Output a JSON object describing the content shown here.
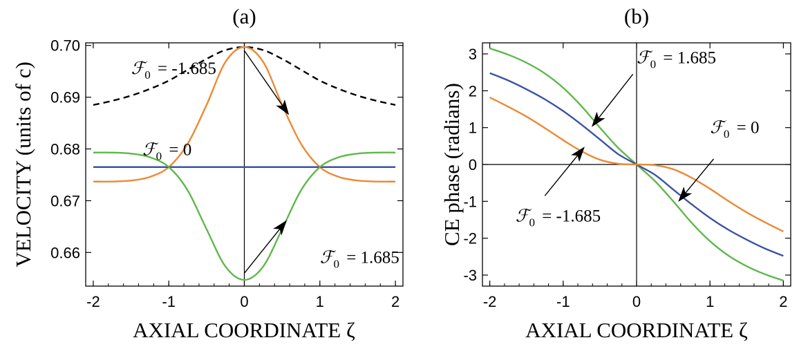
{
  "colors": {
    "orange": "#EE8833",
    "green": "#5DB84A",
    "blue": "#3A53A4",
    "dashed": "#000000",
    "axis": "#000000"
  },
  "chart_data": [
    {
      "type": "line",
      "panel_label": "(a)",
      "xlabel": "AXIAL COORDINATE ζ",
      "ylabel": "VELOCITY (units of c)",
      "xlim": [
        -2.1,
        2.1
      ],
      "ylim": [
        0.6535,
        0.7005
      ],
      "xticks": [
        -2,
        -1,
        0,
        1,
        2
      ],
      "xtick_labels": [
        "-2",
        "-1",
        "0",
        "1",
        "2"
      ],
      "yticks": [
        0.66,
        0.67,
        0.68,
        0.69,
        0.7
      ],
      "ytick_labels": [
        "0.66",
        "0.67",
        "0.68",
        "0.69",
        "0.70"
      ],
      "grid": false,
      "series": [
        {
          "color_key": "dashed",
          "dashed": true,
          "x": [
            -2,
            -1.75,
            -1.5,
            -1.25,
            -1,
            -0.75,
            -0.5,
            -0.25,
            0,
            0.25,
            0.5,
            0.75,
            1,
            1.25,
            1.5,
            1.75,
            2
          ],
          "y": [
            0.6885,
            0.6893,
            0.6903,
            0.6916,
            0.6932,
            0.6953,
            0.6974,
            0.6991,
            0.6997,
            0.6991,
            0.6974,
            0.6953,
            0.6932,
            0.6916,
            0.6903,
            0.6893,
            0.6885
          ]
        },
        {
          "color_key": "orange",
          "x": [
            -2,
            -1.75,
            -1.5,
            -1.25,
            -1,
            -0.75,
            -0.5,
            -0.25,
            0,
            0.25,
            0.5,
            0.75,
            1,
            1.25,
            1.5,
            1.75,
            2
          ],
          "y": [
            0.6737,
            0.6737,
            0.6739,
            0.6746,
            0.6765,
            0.681,
            0.6885,
            0.6968,
            0.6997,
            0.6968,
            0.6885,
            0.681,
            0.6765,
            0.6746,
            0.6739,
            0.6737,
            0.6737
          ]
        },
        {
          "color_key": "blue",
          "x": [
            -2,
            2
          ],
          "y": [
            0.6765,
            0.6765
          ]
        },
        {
          "color_key": "green",
          "x": [
            -2,
            -1.75,
            -1.5,
            -1.25,
            -1,
            -0.75,
            -0.5,
            -0.25,
            0,
            0.25,
            0.5,
            0.75,
            1,
            1.25,
            1.5,
            1.75,
            2
          ],
          "y": [
            0.6793,
            0.6793,
            0.6791,
            0.6784,
            0.6765,
            0.672,
            0.6645,
            0.6573,
            0.6547,
            0.6573,
            0.6645,
            0.672,
            0.6765,
            0.6784,
            0.6791,
            0.6793,
            0.6793
          ]
        }
      ],
      "annotations": [
        {
          "text": "= -1.685",
          "tx": -1.5,
          "ty": 0.6945,
          "ax": 0.58,
          "ay": 0.6868,
          "lx": 0.0,
          "ly": 0.699
        },
        {
          "text": "= 0",
          "tx": -1.35,
          "ty": 0.6788,
          "label_only": true,
          "lx": -1.35,
          "ly": 0.6788
        },
        {
          "text": "= 1.685",
          "tx": 1.0,
          "ty": 0.658,
          "ax": 0.55,
          "ay": 0.666,
          "lx": 0.0,
          "ly": 0.656
        }
      ]
    },
    {
      "type": "line",
      "panel_label": "(b)",
      "xlabel": "AXIAL COORDINATE ζ",
      "ylabel": "CE phase (radians)",
      "xlim": [
        -2.1,
        2.1
      ],
      "ylim": [
        -3.3,
        3.3
      ],
      "xticks": [
        -2,
        -1,
        0,
        1,
        2
      ],
      "xtick_labels": [
        "-2",
        "-1",
        "0",
        "1",
        "2"
      ],
      "yticks": [
        -3,
        -2,
        -1,
        0,
        1,
        2,
        3
      ],
      "ytick_labels": [
        "-3",
        "-2",
        "-1",
        "0",
        "1",
        "2",
        "3"
      ],
      "grid": false,
      "series": [
        {
          "color_key": "green",
          "x": [
            -2,
            -1.75,
            -1.5,
            -1.25,
            -1,
            -0.75,
            -0.5,
            -0.25,
            0,
            0.25,
            0.5,
            0.75,
            1,
            1.25,
            1.5,
            1.75,
            2
          ],
          "y": [
            3.15,
            2.98,
            2.76,
            2.47,
            2.08,
            1.58,
            1.0,
            0.45,
            0,
            -0.45,
            -1.0,
            -1.58,
            -2.08,
            -2.47,
            -2.76,
            -2.98,
            -3.15
          ]
        },
        {
          "color_key": "blue",
          "x": [
            -2,
            -1.75,
            -1.5,
            -1.25,
            -1,
            -0.75,
            -0.5,
            -0.25,
            0,
            0.25,
            0.5,
            0.75,
            1,
            1.25,
            1.5,
            1.75,
            2
          ],
          "y": [
            2.48,
            2.28,
            2.04,
            1.77,
            1.45,
            1.08,
            0.68,
            0.28,
            0,
            -0.28,
            -0.68,
            -1.08,
            -1.45,
            -1.77,
            -2.04,
            -2.28,
            -2.48
          ]
        },
        {
          "color_key": "orange",
          "x": [
            -2,
            -1.75,
            -1.5,
            -1.25,
            -1,
            -0.75,
            -0.5,
            -0.25,
            0,
            0.25,
            0.5,
            0.75,
            1,
            1.25,
            1.5,
            1.75,
            2
          ],
          "y": [
            1.82,
            1.57,
            1.3,
            0.99,
            0.66,
            0.36,
            0.13,
            0.02,
            0,
            -0.02,
            -0.13,
            -0.36,
            -0.66,
            -0.99,
            -1.3,
            -1.57,
            -1.82
          ]
        }
      ],
      "annotations": [
        {
          "text": "= 1.685",
          "tx": 0.0,
          "ty": 2.75,
          "ax": -0.6,
          "ay": 1.05,
          "lx": -0.05,
          "ly": 2.45
        },
        {
          "text": "= 0",
          "tx": 1.0,
          "ty": 0.85,
          "ax": 0.58,
          "ay": -0.98,
          "lx": 1.05,
          "ly": 0.15
        },
        {
          "text": "= -1.685",
          "tx": -1.65,
          "ty": -1.55,
          "ax": -0.72,
          "ay": 0.45,
          "lx": -1.25,
          "ly": -0.85
        }
      ]
    }
  ]
}
